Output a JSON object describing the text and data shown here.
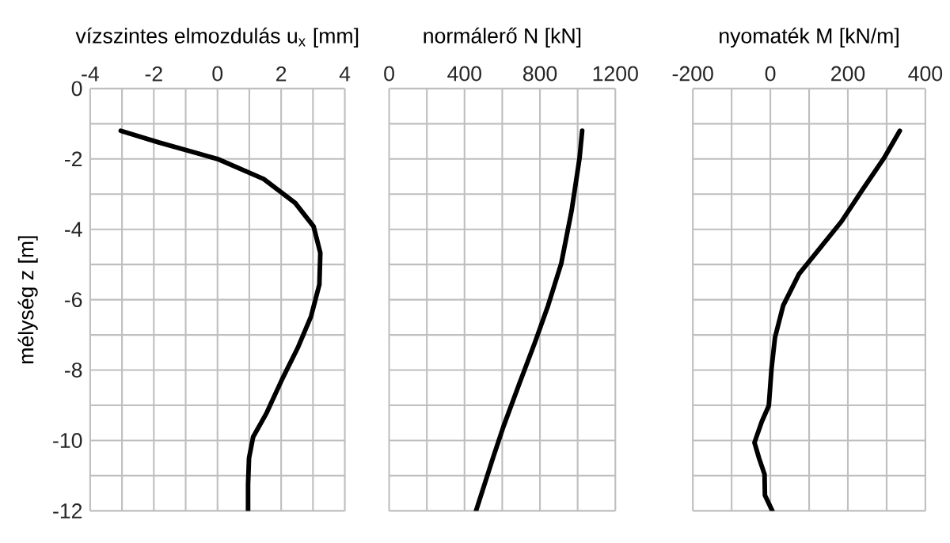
{
  "chart_data": [
    {
      "type": "line",
      "xlabel": "vízszintes elmozdulás u$_{x}$ [mm]",
      "ylabel": "mélység  z  [m]",
      "xlim": [
        -4,
        4
      ],
      "ylim": [
        -12,
        0
      ],
      "xticks": [
        -4,
        {
          "value": -3,
          "label": null
        },
        -2,
        {
          "value": -1,
          "label": null
        },
        0,
        {
          "value": 1,
          "label": null
        },
        2,
        {
          "value": 3,
          "label": null
        },
        4
      ],
      "yticks": [
        -12,
        {
          "value": -11,
          "label": null
        },
        -10,
        {
          "value": -9,
          "label": null
        },
        -8,
        {
          "value": -7,
          "label": null
        },
        -6,
        {
          "value": -5,
          "label": null
        },
        -4,
        {
          "value": -3,
          "label": null
        },
        -2,
        {
          "value": -1,
          "label": null
        },
        0
      ],
      "grid": true,
      "color": "#000000",
      "x": [
        -3.04,
        -1.85,
        0,
        1.45,
        2.44,
        3.02,
        3.23,
        3.2,
        2.94,
        2.52,
        2.03,
        1.53,
        1.12,
        0.99,
        0.96,
        0.96
      ],
      "values": [
        -1.2,
        -1.53,
        -2.0,
        -2.57,
        -3.25,
        -3.92,
        -4.67,
        -5.57,
        -6.47,
        -7.37,
        -8.26,
        -9.24,
        -9.9,
        -10.5,
        -11.25,
        -12
      ]
    },
    {
      "type": "line",
      "xlabel": "normálerő N  [kN]",
      "xlim": [
        0,
        1200
      ],
      "ylim": [
        -12,
        0
      ],
      "tick_labels": "x",
      "xticks": [
        0,
        {
          "value": 200,
          "label": null
        },
        400,
        {
          "value": 600,
          "label": null
        },
        800,
        {
          "value": 1000,
          "label": null
        },
        1200
      ],
      "yticks": [
        {
          "value": -12,
          "label": null
        },
        {
          "value": -11,
          "label": null
        },
        {
          "value": -10,
          "label": null
        },
        {
          "value": -9,
          "label": null
        },
        {
          "value": -8,
          "label": null
        },
        {
          "value": -7,
          "label": null
        },
        {
          "value": -6,
          "label": null
        },
        {
          "value": -5,
          "label": null
        },
        {
          "value": -4,
          "label": null
        },
        {
          "value": -3,
          "label": null
        },
        {
          "value": -2,
          "label": null
        },
        {
          "value": -1,
          "label": null
        },
        {
          "value": 0,
          "label": null
        }
      ],
      "grid": true,
      "color": "#000000",
      "x": [
        1024,
        1010,
        968,
        913,
        843,
        773,
        689,
        606,
        550,
        461
      ],
      "values": [
        -1.2,
        -1.98,
        -3.47,
        -4.97,
        -6.17,
        -7.22,
        -8.41,
        -9.61,
        -10.51,
        -12
      ]
    },
    {
      "type": "line",
      "xlabel": "nyomaték M  [kN/m]",
      "xlim": [
        -200,
        400
      ],
      "ylim": [
        -12,
        0
      ],
      "tick_labels": "x",
      "xticks": [
        -200,
        {
          "value": -100,
          "label": null
        },
        0,
        {
          "value": 100,
          "label": null
        },
        200,
        {
          "value": 300,
          "label": null
        },
        400
      ],
      "yticks": [
        {
          "value": -12,
          "label": null
        },
        {
          "value": -11,
          "label": null
        },
        {
          "value": -10,
          "label": null
        },
        {
          "value": -9,
          "label": null
        },
        {
          "value": -8,
          "label": null
        },
        {
          "value": -7,
          "label": null
        },
        {
          "value": -6,
          "label": null
        },
        {
          "value": -5,
          "label": null
        },
        {
          "value": -4,
          "label": null
        },
        {
          "value": -3,
          "label": null
        },
        {
          "value": -2,
          "label": null
        },
        {
          "value": -1,
          "label": null
        },
        {
          "value": 0,
          "label": null
        }
      ],
      "grid": true,
      "color": "#000000",
      "x": [
        334,
        293,
        238,
        184,
        129,
        74,
        33,
        12,
        3,
        -4,
        -22,
        -41,
        -29,
        -15,
        -14,
        5
      ],
      "values": [
        -1.2,
        -1.98,
        -2.87,
        -3.77,
        -4.52,
        -5.27,
        -6.17,
        -7.07,
        -7.96,
        -9.01,
        -9.46,
        -10.06,
        -10.51,
        -10.96,
        -11.56,
        -12
      ]
    }
  ]
}
